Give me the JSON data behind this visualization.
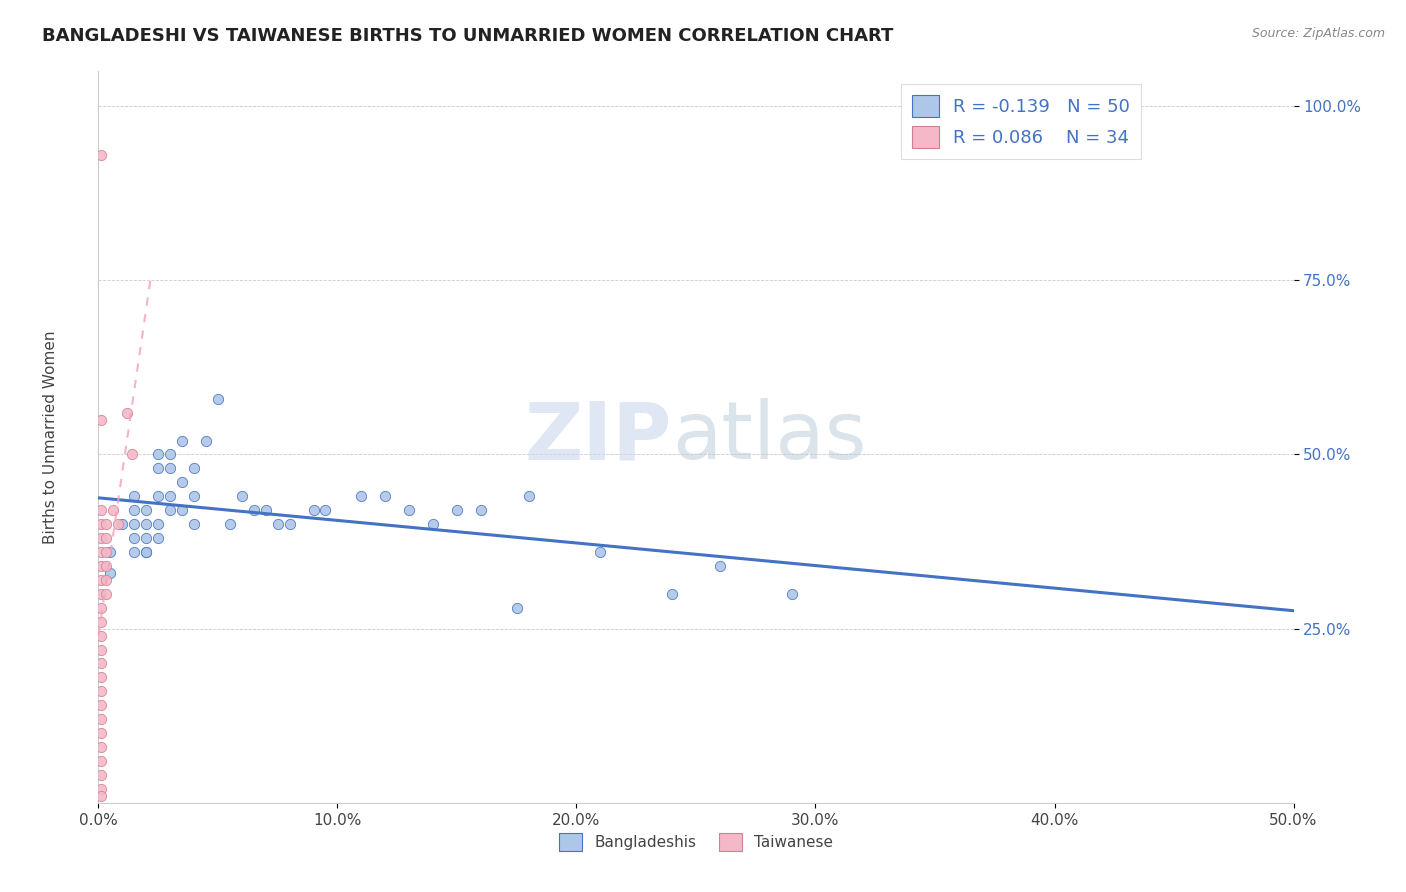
{
  "title": "BANGLADESHI VS TAIWANESE BIRTHS TO UNMARRIED WOMEN CORRELATION CHART",
  "source": "Source: ZipAtlas.com",
  "ylabel": "Births to Unmarried Women",
  "xlim": [
    0.0,
    0.5
  ],
  "ylim": [
    0.0,
    1.05
  ],
  "xticks": [
    0.0,
    0.1,
    0.2,
    0.3,
    0.4,
    0.5
  ],
  "xtick_labels": [
    "0.0%",
    "10.0%",
    "20.0%",
    "30.0%",
    "40.0%",
    "50.0%"
  ],
  "yticks": [
    0.25,
    0.5,
    0.75,
    1.0
  ],
  "ytick_labels": [
    "25.0%",
    "50.0%",
    "75.0%",
    "100.0%"
  ],
  "legend_r_bangladeshi": "-0.139",
  "legend_n_bangladeshi": "50",
  "legend_r_taiwanese": "0.086",
  "legend_n_taiwanese": "34",
  "bangladeshi_color": "#aec6e8",
  "taiwanese_color": "#f4b8c8",
  "trend_bangladeshi_color": "#4472c4",
  "trend_taiwanese_color": "#f4a0b8",
  "bangladeshi_points": [
    [
      0.005,
      0.36
    ],
    [
      0.005,
      0.33
    ],
    [
      0.01,
      0.4
    ],
    [
      0.015,
      0.36
    ],
    [
      0.015,
      0.38
    ],
    [
      0.015,
      0.4
    ],
    [
      0.015,
      0.42
    ],
    [
      0.015,
      0.44
    ],
    [
      0.02,
      0.36
    ],
    [
      0.02,
      0.38
    ],
    [
      0.02,
      0.4
    ],
    [
      0.02,
      0.42
    ],
    [
      0.02,
      0.36
    ],
    [
      0.025,
      0.38
    ],
    [
      0.025,
      0.4
    ],
    [
      0.025,
      0.44
    ],
    [
      0.025,
      0.48
    ],
    [
      0.025,
      0.5
    ],
    [
      0.03,
      0.42
    ],
    [
      0.03,
      0.44
    ],
    [
      0.03,
      0.48
    ],
    [
      0.03,
      0.5
    ],
    [
      0.035,
      0.42
    ],
    [
      0.035,
      0.46
    ],
    [
      0.035,
      0.52
    ],
    [
      0.04,
      0.4
    ],
    [
      0.04,
      0.44
    ],
    [
      0.04,
      0.48
    ],
    [
      0.045,
      0.52
    ],
    [
      0.05,
      0.58
    ],
    [
      0.055,
      0.4
    ],
    [
      0.06,
      0.44
    ],
    [
      0.065,
      0.42
    ],
    [
      0.07,
      0.42
    ],
    [
      0.075,
      0.4
    ],
    [
      0.08,
      0.4
    ],
    [
      0.09,
      0.42
    ],
    [
      0.095,
      0.42
    ],
    [
      0.11,
      0.44
    ],
    [
      0.12,
      0.44
    ],
    [
      0.13,
      0.42
    ],
    [
      0.14,
      0.4
    ],
    [
      0.15,
      0.42
    ],
    [
      0.16,
      0.42
    ],
    [
      0.175,
      0.28
    ],
    [
      0.18,
      0.44
    ],
    [
      0.21,
      0.36
    ],
    [
      0.24,
      0.3
    ],
    [
      0.26,
      0.34
    ],
    [
      0.29,
      0.3
    ]
  ],
  "taiwanese_points": [
    [
      0.001,
      0.93
    ],
    [
      0.001,
      0.55
    ],
    [
      0.001,
      0.42
    ],
    [
      0.001,
      0.4
    ],
    [
      0.001,
      0.38
    ],
    [
      0.001,
      0.36
    ],
    [
      0.001,
      0.34
    ],
    [
      0.001,
      0.32
    ],
    [
      0.001,
      0.3
    ],
    [
      0.001,
      0.28
    ],
    [
      0.001,
      0.26
    ],
    [
      0.001,
      0.24
    ],
    [
      0.001,
      0.22
    ],
    [
      0.001,
      0.2
    ],
    [
      0.001,
      0.18
    ],
    [
      0.001,
      0.16
    ],
    [
      0.001,
      0.14
    ],
    [
      0.001,
      0.12
    ],
    [
      0.001,
      0.1
    ],
    [
      0.001,
      0.08
    ],
    [
      0.001,
      0.06
    ],
    [
      0.001,
      0.04
    ],
    [
      0.001,
      0.02
    ],
    [
      0.001,
      0.01
    ],
    [
      0.003,
      0.4
    ],
    [
      0.003,
      0.38
    ],
    [
      0.003,
      0.36
    ],
    [
      0.003,
      0.34
    ],
    [
      0.003,
      0.32
    ],
    [
      0.003,
      0.3
    ],
    [
      0.006,
      0.42
    ],
    [
      0.008,
      0.4
    ],
    [
      0.012,
      0.56
    ],
    [
      0.014,
      0.5
    ]
  ],
  "taiwanese_trend_x": [
    0.001,
    0.025
  ],
  "watermark_zip_color": "#c8d8ec",
  "watermark_atlas_color": "#b8c8d8"
}
